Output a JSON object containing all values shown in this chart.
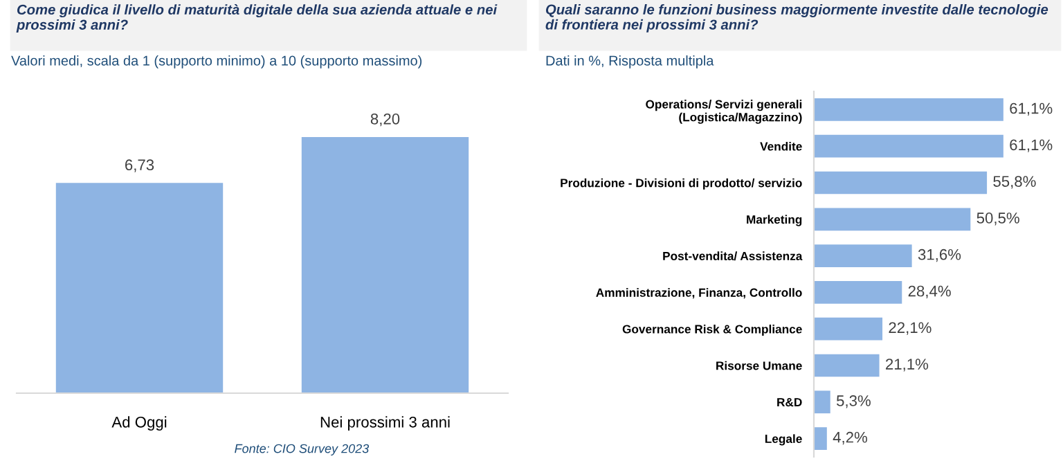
{
  "chart_data": [
    {
      "type": "bar",
      "title": "Come giudica il livello di maturità digitale della sua azienda attuale e nei\nprossimi 3 anni?",
      "subtitle": "Valori medi, scala da 1 (supporto minimo) a 10 (supporto massimo)",
      "categories": [
        "Ad Oggi",
        "Nei prossimi 3 anni"
      ],
      "values": [
        6.73,
        8.2
      ],
      "value_labels": [
        "6,73",
        "8,20"
      ],
      "color": "#8eb4e3",
      "tick_labels": "x",
      "grid": false,
      "legend": false,
      "annotations": [
        "Fonte: CIO Survey 2023"
      ]
    },
    {
      "type": "bar",
      "orientation": "horizontal",
      "title": "Quali saranno le funzioni business maggiormente investite dalle tecnologie\ndi frontiera nei prossimi 3 anni?",
      "subtitle": "Dati in %, Risposta multipla",
      "categories": [
        "Operations/ Servizi generali\n(Logistica/Magazzino)",
        "Vendite",
        "Produzione - Divisioni di prodotto/ servizio",
        "Marketing",
        "Post-vendita/ Assistenza",
        "Amministrazione, Finanza, Controllo",
        "Governance Risk & Compliance",
        "Risorse Umane",
        "R&D",
        "Legale"
      ],
      "values": [
        61.1,
        61.1,
        55.8,
        50.5,
        31.6,
        28.4,
        22.1,
        21.1,
        5.3,
        4.2
      ],
      "value_labels": [
        "61,1%",
        "61,1%",
        "55,8%",
        "50,5%",
        "31,6%",
        "28,4%",
        "22,1%",
        "21,1%",
        "5,3%",
        "4,2%"
      ],
      "color": "#8eb4e3",
      "tick_labels": "y",
      "grid": false,
      "legend": false
    }
  ]
}
